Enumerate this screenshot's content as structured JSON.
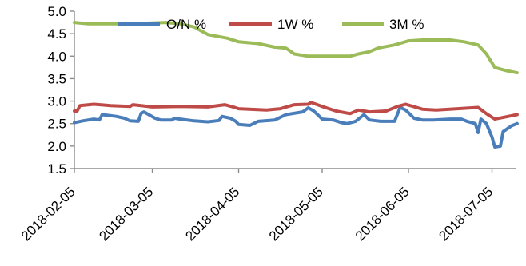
{
  "chart_data": {
    "type": "line",
    "title": "",
    "xlabel": "",
    "ylabel": "",
    "ylim": [
      1.5,
      5.0
    ],
    "y_ticks": [
      "1.5",
      "2.0",
      "2.5",
      "3.0",
      "3.5",
      "4.0",
      "4.5",
      "5.0"
    ],
    "x_range": [
      "2018-02-05",
      "2018-07-14"
    ],
    "x_ticks": [
      "2018-02-05",
      "2018-03-05",
      "2018-04-05",
      "2018-05-05",
      "2018-06-05",
      "2018-07-05"
    ],
    "grid": false,
    "legend_position": "top",
    "series": [
      {
        "name": "O/N %",
        "color": "#4a7ebb",
        "points": [
          [
            "2018-02-05",
            2.52
          ],
          [
            "2018-02-08",
            2.56
          ],
          [
            "2018-02-12",
            2.6
          ],
          [
            "2018-02-14",
            2.58
          ],
          [
            "2018-02-15",
            2.7
          ],
          [
            "2018-02-20",
            2.66
          ],
          [
            "2018-02-23",
            2.62
          ],
          [
            "2018-02-25",
            2.56
          ],
          [
            "2018-02-28",
            2.55
          ],
          [
            "2018-03-01",
            2.73
          ],
          [
            "2018-03-02",
            2.76
          ],
          [
            "2018-03-06",
            2.62
          ],
          [
            "2018-03-08",
            2.58
          ],
          [
            "2018-03-12",
            2.58
          ],
          [
            "2018-03-13",
            2.62
          ],
          [
            "2018-03-15",
            2.6
          ],
          [
            "2018-03-20",
            2.56
          ],
          [
            "2018-03-25",
            2.54
          ],
          [
            "2018-03-29",
            2.57
          ],
          [
            "2018-03-30",
            2.66
          ],
          [
            "2018-04-02",
            2.62
          ],
          [
            "2018-04-04",
            2.55
          ],
          [
            "2018-04-05",
            2.48
          ],
          [
            "2018-04-09",
            2.46
          ],
          [
            "2018-04-12",
            2.55
          ],
          [
            "2018-04-18",
            2.58
          ],
          [
            "2018-04-22",
            2.7
          ],
          [
            "2018-04-25",
            2.73
          ],
          [
            "2018-04-28",
            2.76
          ],
          [
            "2018-04-30",
            2.85
          ],
          [
            "2018-05-02",
            2.78
          ],
          [
            "2018-05-05",
            2.6
          ],
          [
            "2018-05-09",
            2.58
          ],
          [
            "2018-05-12",
            2.52
          ],
          [
            "2018-05-14",
            2.5
          ],
          [
            "2018-05-17",
            2.55
          ],
          [
            "2018-05-20",
            2.7
          ],
          [
            "2018-05-22",
            2.58
          ],
          [
            "2018-05-26",
            2.55
          ],
          [
            "2018-05-31",
            2.55
          ],
          [
            "2018-06-02",
            2.86
          ],
          [
            "2018-06-04",
            2.8
          ],
          [
            "2018-06-07",
            2.62
          ],
          [
            "2018-06-10",
            2.58
          ],
          [
            "2018-06-14",
            2.58
          ],
          [
            "2018-06-20",
            2.6
          ],
          [
            "2018-06-24",
            2.6
          ],
          [
            "2018-06-26",
            2.55
          ],
          [
            "2018-06-29",
            2.5
          ],
          [
            "2018-06-30",
            2.3
          ],
          [
            "2018-07-01",
            2.6
          ],
          [
            "2018-07-03",
            2.5
          ],
          [
            "2018-07-05",
            2.2
          ],
          [
            "2018-07-06",
            1.98
          ],
          [
            "2018-07-08",
            2.0
          ],
          [
            "2018-07-09",
            2.32
          ],
          [
            "2018-07-12",
            2.45
          ],
          [
            "2018-07-14",
            2.5
          ]
        ]
      },
      {
        "name": "1W %",
        "color": "#be4b48",
        "points": [
          [
            "2018-02-05",
            2.78
          ],
          [
            "2018-02-06",
            2.78
          ],
          [
            "2018-02-07",
            2.9
          ],
          [
            "2018-02-12",
            2.93
          ],
          [
            "2018-02-18",
            2.9
          ],
          [
            "2018-02-25",
            2.88
          ],
          [
            "2018-02-26",
            2.92
          ],
          [
            "2018-03-01",
            2.9
          ],
          [
            "2018-03-05",
            2.87
          ],
          [
            "2018-03-15",
            2.88
          ],
          [
            "2018-03-25",
            2.87
          ],
          [
            "2018-03-31",
            2.92
          ],
          [
            "2018-04-03",
            2.87
          ],
          [
            "2018-04-05",
            2.83
          ],
          [
            "2018-04-15",
            2.8
          ],
          [
            "2018-04-20",
            2.83
          ],
          [
            "2018-04-25",
            2.92
          ],
          [
            "2018-04-30",
            2.93
          ],
          [
            "2018-05-01",
            2.97
          ],
          [
            "2018-05-05",
            2.88
          ],
          [
            "2018-05-10",
            2.78
          ],
          [
            "2018-05-15",
            2.72
          ],
          [
            "2018-05-18",
            2.8
          ],
          [
            "2018-05-22",
            2.76
          ],
          [
            "2018-05-28",
            2.78
          ],
          [
            "2018-06-01",
            2.88
          ],
          [
            "2018-06-04",
            2.93
          ],
          [
            "2018-06-10",
            2.82
          ],
          [
            "2018-06-15",
            2.8
          ],
          [
            "2018-06-25",
            2.84
          ],
          [
            "2018-06-30",
            2.86
          ],
          [
            "2018-07-03",
            2.72
          ],
          [
            "2018-07-06",
            2.6
          ],
          [
            "2018-07-10",
            2.65
          ],
          [
            "2018-07-14",
            2.7
          ]
        ]
      },
      {
        "name": "3M %",
        "color": "#9bbb59",
        "points": [
          [
            "2018-02-05",
            4.75
          ],
          [
            "2018-02-10",
            4.72
          ],
          [
            "2018-02-20",
            4.72
          ],
          [
            "2018-03-01",
            4.73
          ],
          [
            "2018-03-10",
            4.75
          ],
          [
            "2018-03-15",
            4.72
          ],
          [
            "2018-03-20",
            4.65
          ],
          [
            "2018-03-25",
            4.48
          ],
          [
            "2018-04-01",
            4.4
          ],
          [
            "2018-04-05",
            4.32
          ],
          [
            "2018-04-12",
            4.28
          ],
          [
            "2018-04-18",
            4.2
          ],
          [
            "2018-04-22",
            4.18
          ],
          [
            "2018-04-25",
            4.05
          ],
          [
            "2018-04-30",
            4.0
          ],
          [
            "2018-05-05",
            4.0
          ],
          [
            "2018-05-15",
            4.0
          ],
          [
            "2018-05-18",
            4.05
          ],
          [
            "2018-05-22",
            4.1
          ],
          [
            "2018-05-25",
            4.18
          ],
          [
            "2018-05-31",
            4.25
          ],
          [
            "2018-06-05",
            4.34
          ],
          [
            "2018-06-10",
            4.36
          ],
          [
            "2018-06-20",
            4.36
          ],
          [
            "2018-06-25",
            4.32
          ],
          [
            "2018-06-30",
            4.25
          ],
          [
            "2018-07-03",
            4.05
          ],
          [
            "2018-07-06",
            3.75
          ],
          [
            "2018-07-10",
            3.68
          ],
          [
            "2018-07-14",
            3.63
          ]
        ]
      }
    ]
  }
}
